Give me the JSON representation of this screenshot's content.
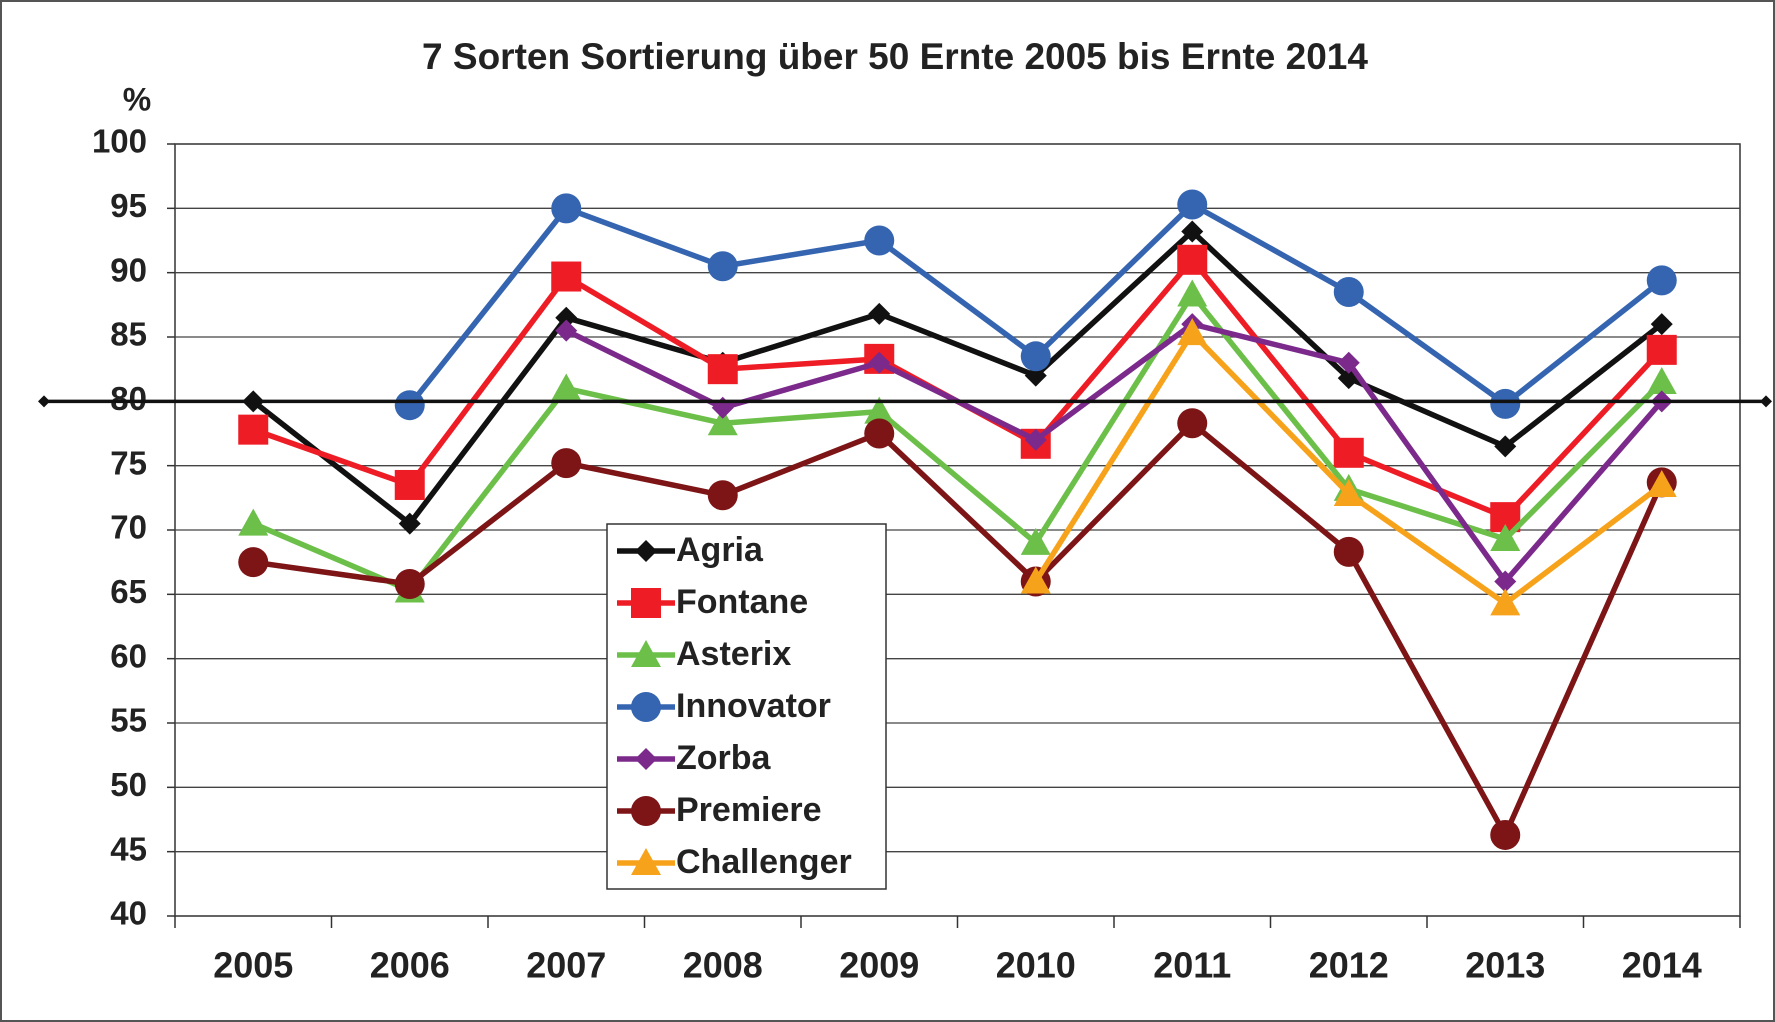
{
  "chart_data": {
    "type": "line",
    "title": "7 Sorten Sortierung über 50 Ernte 2005 bis Ernte 2014",
    "y_label": "%",
    "categories": [
      "2005",
      "2006",
      "2007",
      "2008",
      "2009",
      "2010",
      "2011",
      "2012",
      "2013",
      "2014"
    ],
    "series": [
      {
        "name": "Agria",
        "color": "#111111",
        "marker": "diamond",
        "values": [
          80,
          70.5,
          86.5,
          83,
          86.8,
          82,
          93.2,
          81.8,
          76.5,
          86
        ]
      },
      {
        "name": "Fontane",
        "color": "#ee1c25",
        "marker": "square",
        "values": [
          77.8,
          73.5,
          89.7,
          82.5,
          83.3,
          76.7,
          91,
          76,
          71,
          84
        ]
      },
      {
        "name": "Asterix",
        "color": "#6cc04a",
        "marker": "triangle",
        "values": [
          70.5,
          65.3,
          81,
          78.3,
          79.2,
          69,
          88.3,
          73.2,
          69.3,
          81.5
        ]
      },
      {
        "name": "Innovator",
        "color": "#3565b0",
        "marker": "circle",
        "values": [
          null,
          79.7,
          95,
          90.5,
          92.5,
          83.5,
          95.3,
          88.5,
          79.8,
          89.4
        ]
      },
      {
        "name": "Zorba",
        "color": "#7b2a8c",
        "marker": "diamond",
        "values": [
          null,
          null,
          85.5,
          79.5,
          83,
          77,
          86,
          83,
          66,
          80
        ]
      },
      {
        "name": "Premiere",
        "color": "#7d1416",
        "marker": "circle",
        "values": [
          67.5,
          65.8,
          75.2,
          72.7,
          77.5,
          66,
          78.3,
          68.3,
          46.3,
          73.7
        ]
      },
      {
        "name": "Challenger",
        "color": "#f7a21b",
        "marker": "triangle",
        "values": [
          null,
          null,
          null,
          null,
          null,
          66,
          85.3,
          72.8,
          64.3,
          73.5
        ]
      }
    ],
    "reference_line": 80,
    "ylim": [
      40,
      100
    ],
    "yticks": [
      40,
      45,
      50,
      55,
      60,
      65,
      70,
      75,
      80,
      85,
      90,
      95,
      100
    ],
    "grid": true,
    "legend": "center"
  }
}
